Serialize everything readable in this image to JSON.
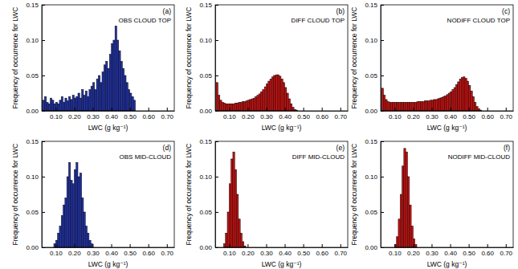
{
  "chart_data": [
    {
      "type": "histogram",
      "title": "OBS CLOUD TOP",
      "annotations": [
        "(a)"
      ],
      "x_label": "LWC (g kg⁻¹)",
      "y_label": "Frequency of occurrence for LWC",
      "color": "#2233aa",
      "bins": [
        0.03,
        0.04,
        0.05,
        0.06,
        0.07,
        0.08,
        0.09,
        0.1,
        0.11,
        0.12,
        0.13,
        0.14,
        0.15,
        0.16,
        0.17,
        0.18,
        0.19,
        0.2,
        0.21,
        0.22,
        0.23,
        0.24,
        0.25,
        0.26,
        0.27,
        0.28,
        0.29,
        0.3,
        0.31,
        0.32,
        0.33,
        0.34,
        0.35,
        0.36,
        0.37,
        0.38,
        0.39,
        0.4,
        0.41,
        0.42,
        0.43,
        0.44,
        0.45,
        0.46,
        0.47,
        0.48,
        0.49,
        0.5,
        0.51,
        0.52,
        0.53
      ],
      "values": [
        0.015,
        0.02,
        0.012,
        0.01,
        0.018,
        0.015,
        0.01,
        0.012,
        0.01,
        0.015,
        0.02,
        0.012,
        0.018,
        0.014,
        0.02,
        0.016,
        0.022,
        0.018,
        0.02,
        0.025,
        0.018,
        0.03,
        0.022,
        0.028,
        0.02,
        0.03,
        0.035,
        0.04,
        0.03,
        0.045,
        0.05,
        0.04,
        0.055,
        0.065,
        0.07,
        0.06,
        0.08,
        0.095,
        0.1,
        0.12,
        0.1,
        0.085,
        0.07,
        0.06,
        0.05,
        0.04,
        0.03,
        0.025,
        0.02,
        0.015
      ],
      "xlim": [
        0.025,
        0.74
      ],
      "ylim": [
        0,
        0.15
      ],
      "xticks": [
        {
          "value": 0.1,
          "label": "0.10"
        },
        {
          "value": 0.2,
          "label": "0.20"
        },
        {
          "value": 0.3,
          "label": "0.30"
        },
        {
          "value": 0.4,
          "label": "0.40"
        },
        {
          "value": 0.5,
          "label": "0.50"
        },
        {
          "value": 0.6,
          "label": "0.60"
        },
        {
          "value": 0.7,
          "label": "0.70"
        }
      ],
      "yticks": [
        {
          "value": 0,
          "label": "0.00"
        },
        {
          "value": 0.05,
          "label": "0.05"
        },
        {
          "value": 0.1,
          "label": "0.10"
        },
        {
          "value": 0.15,
          "label": "0.15"
        }
      ]
    },
    {
      "type": "histogram",
      "title": "DIFF CLOUD TOP",
      "annotations": [
        "(b)"
      ],
      "x_label": "LWC (g kg⁻¹)",
      "y_label": "Frequency of occurrence for LWC",
      "color": "#cc1111",
      "bins": [
        0.03,
        0.04,
        0.05,
        0.06,
        0.07,
        0.08,
        0.09,
        0.1,
        0.11,
        0.12,
        0.13,
        0.14,
        0.15,
        0.16,
        0.17,
        0.18,
        0.19,
        0.2,
        0.21,
        0.22,
        0.23,
        0.24,
        0.25,
        0.26,
        0.27,
        0.28,
        0.29,
        0.3,
        0.31,
        0.32,
        0.33,
        0.34,
        0.35,
        0.36,
        0.37,
        0.38,
        0.39,
        0.4,
        0.41,
        0.42,
        0.43,
        0.44,
        0.45,
        0.46,
        0.47
      ],
      "values": [
        0.04,
        0.022,
        0.015,
        0.012,
        0.011,
        0.01,
        0.01,
        0.01,
        0.01,
        0.01,
        0.011,
        0.011,
        0.012,
        0.012,
        0.013,
        0.013,
        0.014,
        0.015,
        0.016,
        0.017,
        0.018,
        0.02,
        0.022,
        0.024,
        0.027,
        0.03,
        0.034,
        0.038,
        0.042,
        0.045,
        0.048,
        0.05,
        0.051,
        0.051,
        0.049,
        0.045,
        0.04,
        0.033,
        0.025,
        0.017,
        0.01,
        0.005,
        0.002,
        0.001
      ],
      "xlim": [
        0.025,
        0.74
      ],
      "ylim": [
        0,
        0.15
      ],
      "xticks": [
        {
          "value": 0.1,
          "label": "0.10"
        },
        {
          "value": 0.2,
          "label": "0.20"
        },
        {
          "value": 0.3,
          "label": "0.30"
        },
        {
          "value": 0.4,
          "label": "0.40"
        },
        {
          "value": 0.5,
          "label": "0.50"
        },
        {
          "value": 0.6,
          "label": "0.60"
        },
        {
          "value": 0.7,
          "label": "0.70"
        }
      ],
      "yticks": [
        {
          "value": 0,
          "label": "0.00"
        },
        {
          "value": 0.05,
          "label": "0.05"
        },
        {
          "value": 0.1,
          "label": "0.10"
        },
        {
          "value": 0.15,
          "label": "0.15"
        }
      ]
    },
    {
      "type": "histogram",
      "title": "NODIFF CLOUD TOP",
      "annotations": [
        "(c)"
      ],
      "x_label": "LWC (g kg⁻¹)",
      "y_label": "Frequency of occurrence for LWC",
      "color": "#cc1111",
      "bins": [
        0.03,
        0.04,
        0.05,
        0.06,
        0.07,
        0.08,
        0.09,
        0.1,
        0.11,
        0.12,
        0.13,
        0.14,
        0.15,
        0.16,
        0.17,
        0.18,
        0.19,
        0.2,
        0.21,
        0.22,
        0.23,
        0.24,
        0.25,
        0.26,
        0.27,
        0.28,
        0.29,
        0.3,
        0.31,
        0.32,
        0.33,
        0.34,
        0.35,
        0.36,
        0.37,
        0.38,
        0.39,
        0.4,
        0.41,
        0.42,
        0.43,
        0.44,
        0.45,
        0.46,
        0.47,
        0.48,
        0.49,
        0.5,
        0.51,
        0.52,
        0.53,
        0.54,
        0.55,
        0.56,
        0.57
      ],
      "values": [
        0.032,
        0.022,
        0.016,
        0.013,
        0.012,
        0.012,
        0.012,
        0.012,
        0.012,
        0.012,
        0.012,
        0.012,
        0.012,
        0.012,
        0.012,
        0.012,
        0.012,
        0.012,
        0.012,
        0.013,
        0.013,
        0.013,
        0.013,
        0.014,
        0.014,
        0.014,
        0.015,
        0.015,
        0.016,
        0.016,
        0.017,
        0.018,
        0.019,
        0.02,
        0.021,
        0.023,
        0.025,
        0.027,
        0.03,
        0.033,
        0.037,
        0.041,
        0.045,
        0.047,
        0.048,
        0.046,
        0.042,
        0.036,
        0.028,
        0.02,
        0.012,
        0.006,
        0.003,
        0.001
      ],
      "xlim": [
        0.025,
        0.74
      ],
      "ylim": [
        0,
        0.15
      ],
      "xticks": [
        {
          "value": 0.1,
          "label": "0.10"
        },
        {
          "value": 0.2,
          "label": "0.20"
        },
        {
          "value": 0.3,
          "label": "0.30"
        },
        {
          "value": 0.4,
          "label": "0.40"
        },
        {
          "value": 0.5,
          "label": "0.50"
        },
        {
          "value": 0.6,
          "label": "0.60"
        },
        {
          "value": 0.7,
          "label": "0.70"
        }
      ],
      "yticks": [
        {
          "value": 0,
          "label": "0.00"
        },
        {
          "value": 0.05,
          "label": "0.05"
        },
        {
          "value": 0.1,
          "label": "0.10"
        },
        {
          "value": 0.15,
          "label": "0.15"
        }
      ]
    },
    {
      "type": "histogram",
      "title": "OBS MID-CLOUD",
      "annotations": [
        "(d)"
      ],
      "x_label": "LWC (g kg⁻¹)",
      "y_label": "Frequency of occurrence for LWC",
      "color": "#2233aa",
      "bins": [
        0.09,
        0.1,
        0.11,
        0.12,
        0.13,
        0.14,
        0.15,
        0.16,
        0.17,
        0.18,
        0.19,
        0.2,
        0.21,
        0.22,
        0.23,
        0.24,
        0.25,
        0.26,
        0.27,
        0.28,
        0.29,
        0.3
      ],
      "values": [
        0.005,
        0.01,
        0.02,
        0.03,
        0.045,
        0.06,
        0.07,
        0.1,
        0.12,
        0.095,
        0.09,
        0.11,
        0.12,
        0.1,
        0.105,
        0.07,
        0.05,
        0.03,
        0.02,
        0.01,
        0.005
      ],
      "xlim": [
        0.025,
        0.74
      ],
      "ylim": [
        0,
        0.15
      ],
      "xticks": [
        {
          "value": 0.1,
          "label": "0.10"
        },
        {
          "value": 0.2,
          "label": "0.20"
        },
        {
          "value": 0.3,
          "label": "0.30"
        },
        {
          "value": 0.4,
          "label": "0.40"
        },
        {
          "value": 0.5,
          "label": "0.50"
        },
        {
          "value": 0.6,
          "label": "0.60"
        },
        {
          "value": 0.7,
          "label": "0.70"
        }
      ],
      "yticks": [
        {
          "value": 0,
          "label": "0.00"
        },
        {
          "value": 0.05,
          "label": "0.05"
        },
        {
          "value": 0.1,
          "label": "0.10"
        },
        {
          "value": 0.15,
          "label": "0.15"
        }
      ]
    },
    {
      "type": "histogram",
      "title": "DIFF MID-CLOUD",
      "annotations": [
        "(e)"
      ],
      "x_label": "LWC (g kg⁻¹)",
      "y_label": "Frequency of occurrence for LWC",
      "color": "#cc1111",
      "bins": [
        0.07,
        0.08,
        0.09,
        0.1,
        0.11,
        0.12,
        0.13,
        0.14,
        0.15,
        0.16,
        0.17,
        0.18,
        0.19
      ],
      "values": [
        0.005,
        0.02,
        0.05,
        0.09,
        0.125,
        0.135,
        0.11,
        0.075,
        0.04,
        0.02,
        0.008,
        0.002
      ],
      "xlim": [
        0.025,
        0.74
      ],
      "ylim": [
        0,
        0.15
      ],
      "xticks": [
        {
          "value": 0.1,
          "label": "0.10"
        },
        {
          "value": 0.2,
          "label": "0.20"
        },
        {
          "value": 0.3,
          "label": "0.30"
        },
        {
          "value": 0.4,
          "label": "0.40"
        },
        {
          "value": 0.5,
          "label": "0.50"
        },
        {
          "value": 0.6,
          "label": "0.60"
        },
        {
          "value": 0.7,
          "label": "0.70"
        }
      ],
      "yticks": [
        {
          "value": 0,
          "label": "0.00"
        },
        {
          "value": 0.05,
          "label": "0.05"
        },
        {
          "value": 0.1,
          "label": "0.10"
        },
        {
          "value": 0.15,
          "label": "0.15"
        }
      ]
    },
    {
      "type": "histogram",
      "title": "NODIFF MID-CLOUD",
      "annotations": [
        "(f)"
      ],
      "x_label": "LWC (g kg⁻¹)",
      "y_label": "Frequency of occurrence for LWC",
      "color": "#cc1111",
      "bins": [
        0.1,
        0.11,
        0.12,
        0.13,
        0.14,
        0.15,
        0.16,
        0.17,
        0.18,
        0.19,
        0.2,
        0.21,
        0.22
      ],
      "values": [
        0.004,
        0.015,
        0.04,
        0.075,
        0.115,
        0.14,
        0.135,
        0.1,
        0.06,
        0.03,
        0.012,
        0.004
      ],
      "xlim": [
        0.025,
        0.74
      ],
      "ylim": [
        0,
        0.15
      ],
      "xticks": [
        {
          "value": 0.1,
          "label": "0.10"
        },
        {
          "value": 0.2,
          "label": "0.20"
        },
        {
          "value": 0.3,
          "label": "0.30"
        },
        {
          "value": 0.4,
          "label": "0.40"
        },
        {
          "value": 0.5,
          "label": "0.50"
        },
        {
          "value": 0.6,
          "label": "0.60"
        },
        {
          "value": 0.7,
          "label": "0.70"
        }
      ],
      "yticks": [
        {
          "value": 0,
          "label": "0.00"
        },
        {
          "value": 0.05,
          "label": "0.05"
        },
        {
          "value": 0.1,
          "label": "0.10"
        },
        {
          "value": 0.15,
          "label": "0.15"
        }
      ]
    }
  ]
}
